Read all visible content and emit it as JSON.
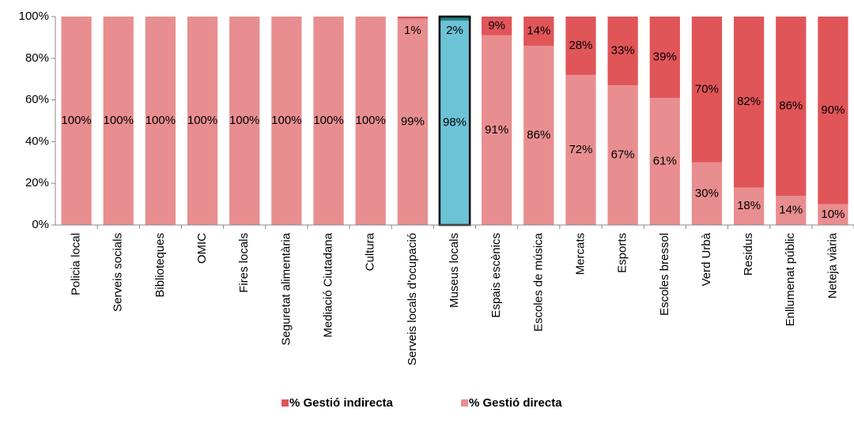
{
  "chart_data": {
    "type": "stacked_bar",
    "categories": [
      "Policia local",
      "Serveis socials",
      "Biblioteques",
      "OMIC",
      "Fires locals",
      "Seguretat alimentària",
      "Mediació Ciutadana",
      "Cultura",
      "Serveis locals d'ocupació",
      "Museus locals",
      "Espais escènics",
      "Escoles de música",
      "Mercats",
      "Esports",
      "Escoles bressol",
      "Verd Urbà",
      "Residus",
      "Enllumenat públic",
      "Neteja viària"
    ],
    "series": [
      {
        "name": "% Gestió directa",
        "color": "#e88e90",
        "values": [
          100,
          100,
          100,
          100,
          100,
          100,
          100,
          100,
          99,
          98,
          91,
          86,
          72,
          67,
          61,
          30,
          18,
          14,
          10
        ],
        "value_labels": [
          "100%",
          "100%",
          "100%",
          "100%",
          "100%",
          "100%",
          "100%",
          "100%",
          "99%",
          "98%",
          "91%",
          "86%",
          "72%",
          "67%",
          "61%",
          "30%",
          "18%",
          "14%",
          "10%"
        ]
      },
      {
        "name": "% Gestió indirecta",
        "color": "#e05558",
        "values": [
          0,
          0,
          0,
          0,
          0,
          0,
          0,
          0,
          1,
          2,
          9,
          14,
          28,
          33,
          39,
          70,
          82,
          86,
          90
        ],
        "value_labels": [
          null,
          null,
          null,
          null,
          null,
          null,
          null,
          null,
          "1%",
          "2%",
          "9%",
          "14%",
          "28%",
          "33%",
          "39%",
          "70%",
          "82%",
          "86%",
          "90%"
        ]
      }
    ],
    "highlight": {
      "index": 9,
      "color": "#6cc3d6",
      "top_color": "#1f7f80"
    },
    "ylim": [
      0,
      100
    ],
    "yticks": [
      {
        "value": 0,
        "label": "0%"
      },
      {
        "value": 20,
        "label": "20%"
      },
      {
        "value": 40,
        "label": "40%"
      },
      {
        "value": 60,
        "label": "60%"
      },
      {
        "value": 80,
        "label": "80%"
      },
      {
        "value": 100,
        "label": "100%"
      }
    ],
    "legend": "bottom"
  }
}
